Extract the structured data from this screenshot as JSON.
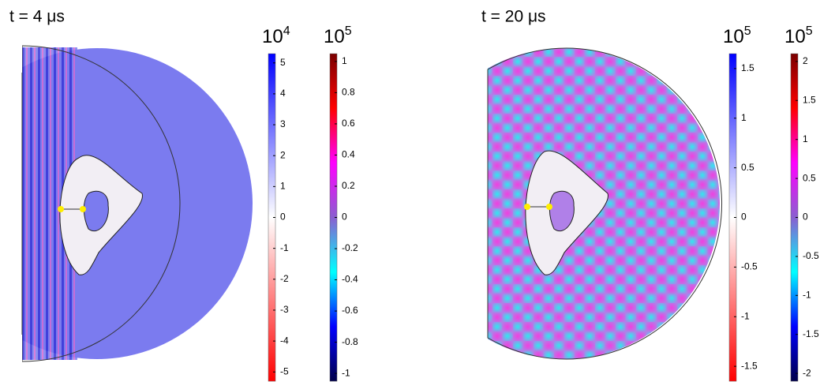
{
  "panels": [
    {
      "title": "t = 4 μs",
      "colorbars": [
        {
          "base": "10",
          "exponent": "4",
          "lim": [
            -5.3,
            5.3
          ],
          "ticks": [
            5,
            4,
            3,
            2,
            1,
            0,
            -1,
            -2,
            -3,
            -4,
            -5
          ],
          "colors": [
            "#0000ff",
            "#ffffff",
            "#ff0000"
          ]
        },
        {
          "base": "10",
          "exponent": "5",
          "lim": [
            -1.05,
            1.05
          ],
          "ticks": [
            1,
            0.8,
            0.6,
            0.4,
            0.2,
            0,
            -0.2,
            -0.4,
            -0.6,
            -0.8,
            -1
          ],
          "colors": [
            "#7a0000",
            "#ff0000",
            "#ff00ff",
            "#8a5fd0",
            "#00ffff",
            "#0000ff",
            "#00004a"
          ]
        }
      ]
    },
    {
      "title": "t = 20 μs",
      "colorbars": [
        {
          "base": "10",
          "exponent": "5",
          "lim": [
            -1.65,
            1.65
          ],
          "ticks": [
            1.5,
            1,
            0.5,
            0,
            -0.5,
            -1,
            -1.5
          ],
          "colors": [
            "#0000ff",
            "#ffffff",
            "#ff0000"
          ]
        },
        {
          "base": "10",
          "exponent": "5",
          "lim": [
            -2.1,
            2.1
          ],
          "ticks": [
            2,
            1.5,
            1,
            0.5,
            0,
            -0.5,
            -1,
            -1.5,
            -2
          ],
          "colors": [
            "#7a0000",
            "#ff0000",
            "#ff00ff",
            "#8a5fd0",
            "#00ffff",
            "#0000ff",
            "#00004a"
          ]
        }
      ]
    }
  ]
}
